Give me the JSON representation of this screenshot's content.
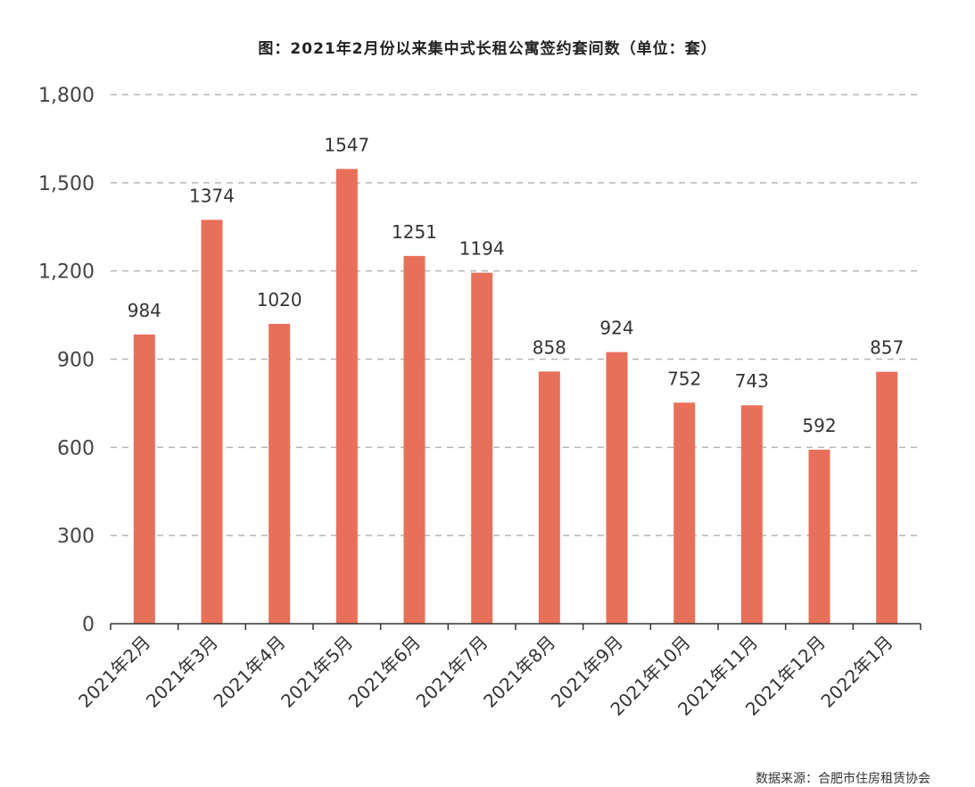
{
  "chart_data": {
    "type": "bar",
    "title": "图：2021年2月份以来集中式长租公寓签约套间数（单位：套）",
    "categories": [
      "2021年2月",
      "2021年3月",
      "2021年4月",
      "2021年5月",
      "2021年6月",
      "2021年7月",
      "2021年8月",
      "2021年9月",
      "2021年10月",
      "2021年11月",
      "2021年12月",
      "2022年1月"
    ],
    "values": [
      984,
      1374,
      1020,
      1547,
      1251,
      1194,
      858,
      924,
      752,
      743,
      592,
      857
    ],
    "ylim": [
      0,
      1800
    ],
    "yticks": [
      0,
      300,
      600,
      900,
      1200,
      1500,
      1800
    ],
    "ytick_labels": [
      "0",
      "300",
      "600",
      "900",
      "1,200",
      "1,500",
      "1,800"
    ],
    "grid": true,
    "bar_color": "#E8705A",
    "grid_color": "#b5b5b5",
    "axis_color": "#333333"
  },
  "source": "数据来源：合肥市住房租赁协会"
}
